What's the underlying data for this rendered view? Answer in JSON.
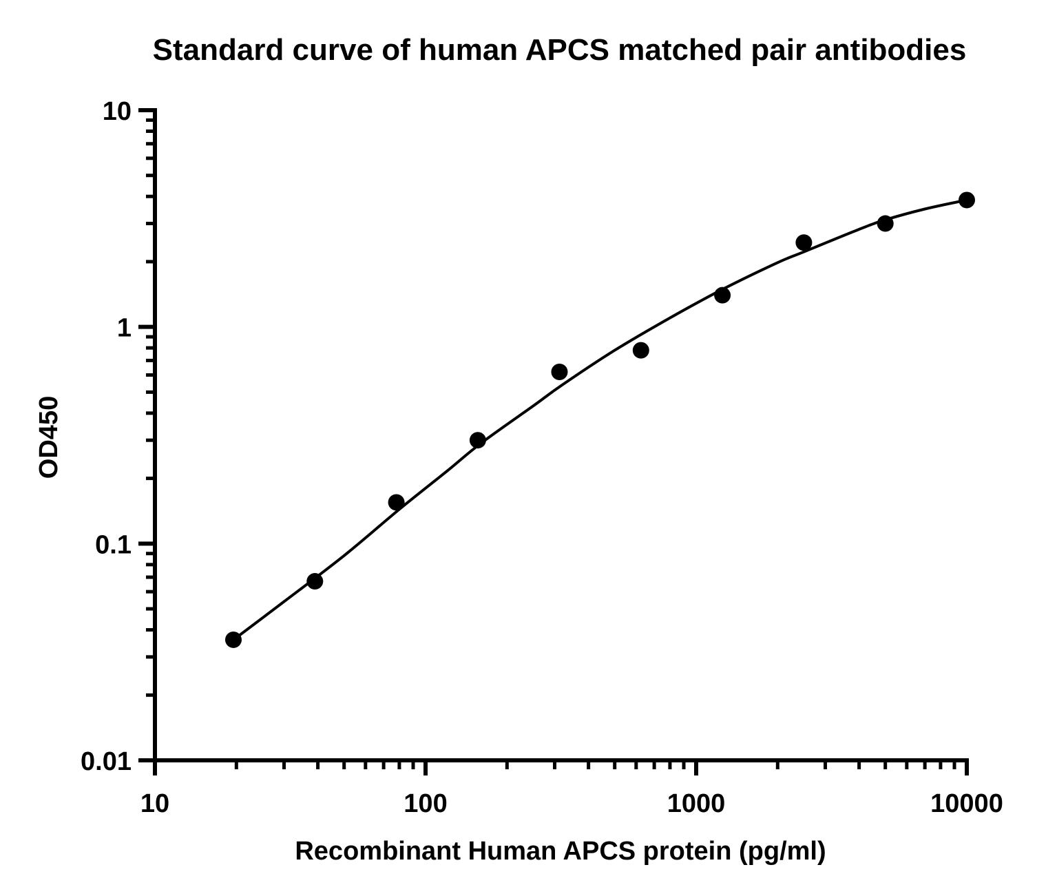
{
  "chart_data": {
    "type": "scatter",
    "title": "Standard curve of human APCS matched pair antibodies",
    "xlabel": "Recombinant Human APCS protein (pg/ml)",
    "ylabel": "OD450",
    "x_scale": "log",
    "y_scale": "log",
    "xlim": [
      10,
      10000
    ],
    "ylim": [
      0.01,
      10
    ],
    "x_ticks": [
      {
        "value": 10,
        "label": "10"
      },
      {
        "value": 100,
        "label": "100"
      },
      {
        "value": 1000,
        "label": "1000"
      },
      {
        "value": 10000,
        "label": "10000"
      }
    ],
    "y_ticks": [
      {
        "value": 0.01,
        "label": "0.01"
      },
      {
        "value": 0.1,
        "label": "0.1"
      },
      {
        "value": 1,
        "label": "1"
      },
      {
        "value": 10,
        "label": "10"
      }
    ],
    "grid": false,
    "color": "#000000",
    "points": [
      {
        "x": 19.5,
        "y": 0.036
      },
      {
        "x": 39,
        "y": 0.067
      },
      {
        "x": 78,
        "y": 0.155
      },
      {
        "x": 156,
        "y": 0.3
      },
      {
        "x": 312.5,
        "y": 0.62
      },
      {
        "x": 625,
        "y": 0.78
      },
      {
        "x": 1250,
        "y": 1.4
      },
      {
        "x": 2500,
        "y": 2.45
      },
      {
        "x": 5000,
        "y": 3.0
      },
      {
        "x": 10000,
        "y": 3.85
      }
    ],
    "fit_curve": [
      {
        "x": 19.5,
        "y": 0.036
      },
      {
        "x": 30,
        "y": 0.054
      },
      {
        "x": 50,
        "y": 0.088
      },
      {
        "x": 80,
        "y": 0.144
      },
      {
        "x": 120,
        "y": 0.216
      },
      {
        "x": 160,
        "y": 0.29
      },
      {
        "x": 250,
        "y": 0.432
      },
      {
        "x": 320,
        "y": 0.54
      },
      {
        "x": 500,
        "y": 0.78
      },
      {
        "x": 800,
        "y": 1.1
      },
      {
        "x": 1250,
        "y": 1.49
      },
      {
        "x": 2000,
        "y": 1.98
      },
      {
        "x": 2500,
        "y": 2.22
      },
      {
        "x": 4000,
        "y": 2.82
      },
      {
        "x": 5000,
        "y": 3.12
      },
      {
        "x": 7000,
        "y": 3.5
      },
      {
        "x": 10000,
        "y": 3.85
      }
    ]
  }
}
